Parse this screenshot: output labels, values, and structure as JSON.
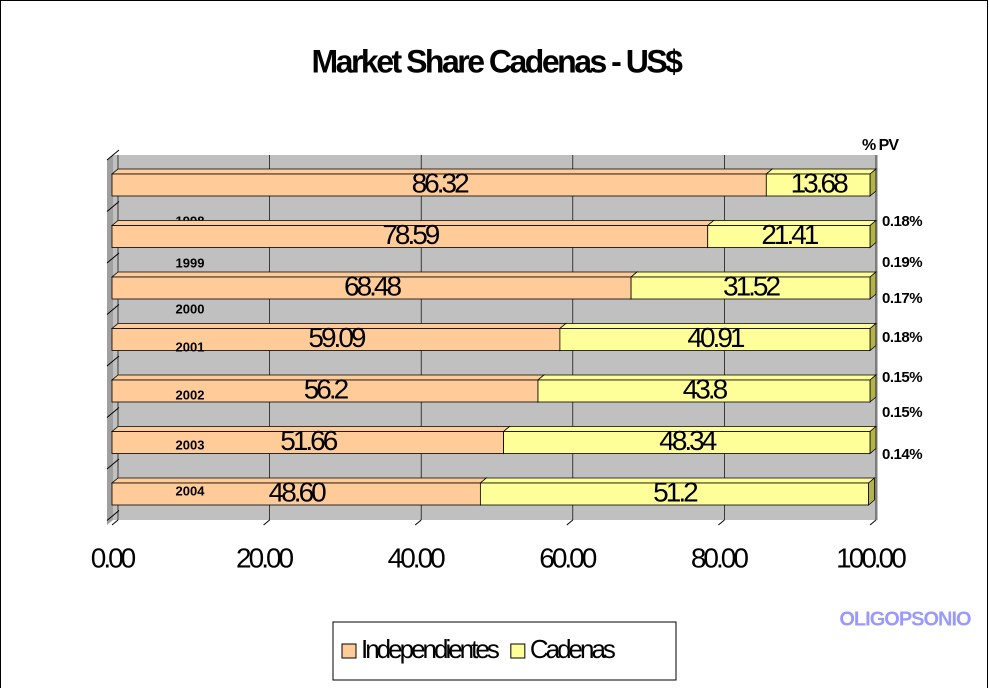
{
  "chart_data": {
    "type": "bar",
    "orientation": "horizontal",
    "stacked": true,
    "title": "Market Share Cadenas - US$",
    "categories": [
      "1998",
      "1999",
      "2000",
      "2001",
      "2002",
      "2003",
      "2004"
    ],
    "series": [
      {
        "name": "Independientes",
        "color": "#ffcc99",
        "values": [
          86.32,
          78.59,
          68.48,
          59.09,
          56.2,
          51.66,
          48.6
        ],
        "value_labels": [
          "86.32",
          "78.59",
          "68.48",
          "59.09",
          "56.2",
          "51.66",
          "48.60"
        ]
      },
      {
        "name": "Cadenas",
        "color": "#ffff99",
        "values": [
          13.68,
          21.41,
          31.52,
          40.91,
          43.8,
          48.34,
          51.2
        ],
        "value_labels": [
          "13.68",
          "21.41",
          "31.52",
          "40.91",
          "43.8",
          "48.34",
          "51.2"
        ]
      }
    ],
    "xlim": [
      0,
      100
    ],
    "xticks": [
      {
        "value": 0,
        "label": "0.00"
      },
      {
        "value": 20,
        "label": "20.00"
      },
      {
        "value": 40,
        "label": "40.00"
      },
      {
        "value": 60,
        "label": "60.00"
      },
      {
        "value": 80,
        "label": "80.00"
      },
      {
        "value": 100,
        "label": "100.00"
      }
    ],
    "grid": true,
    "pv_title": "% PV",
    "pv_labels": [
      "0.18%",
      "0.19%",
      "0.17%",
      "0.18%",
      "0.15%",
      "0.15%",
      "0.14%"
    ],
    "note": "OLIGOPSONIO"
  }
}
